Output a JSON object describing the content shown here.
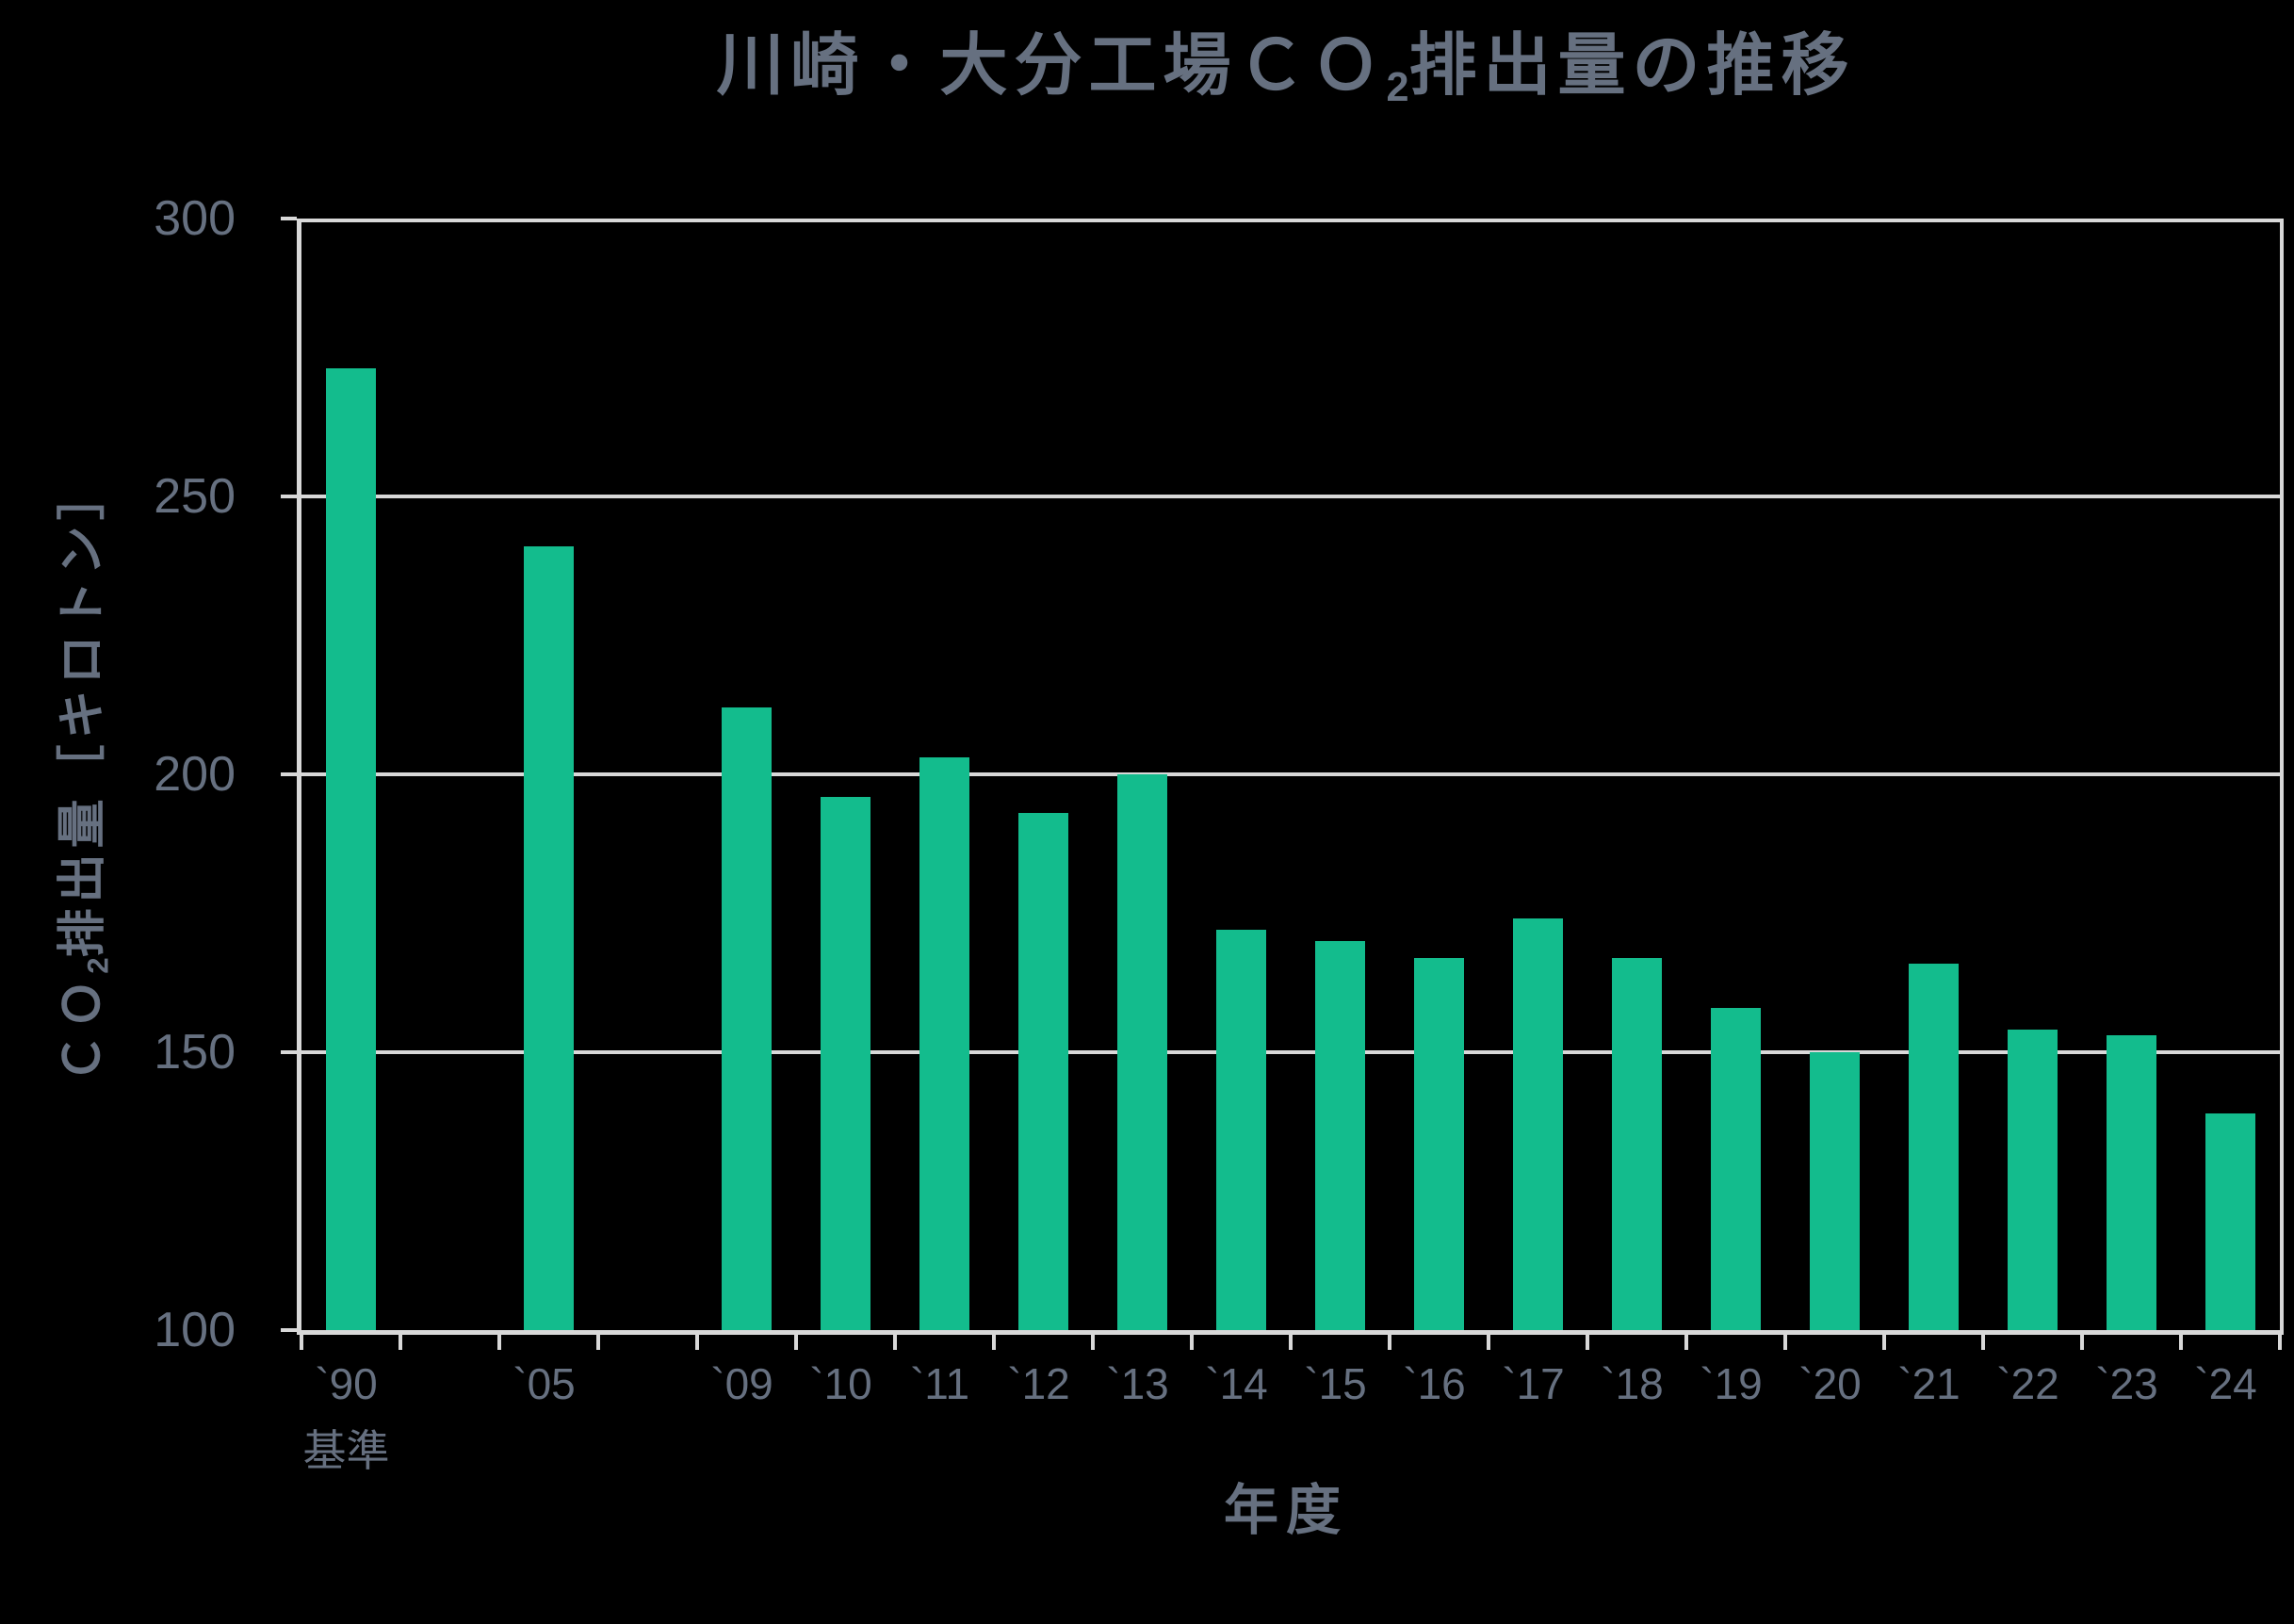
{
  "colors": {
    "background": "#000000",
    "bar": "#13BC8D",
    "axis": "#D8D8D8",
    "text": "#667080"
  },
  "chart_data": {
    "type": "bar",
    "title": "川崎・大分工場ＣＯ2排出量の推移",
    "title_parts": {
      "prefix": "川崎・大分工場ＣＯ",
      "sub": "2",
      "suffix": "排出量の推移"
    },
    "ylabel": "ＣＯ2排出量［キロトン］",
    "ylabel_parts": {
      "prefix": "ＣＯ",
      "sub": "2",
      "suffix": "排出量［キロトン］"
    },
    "xlabel": "年度",
    "baseline_note": "基準",
    "ylim": [
      100,
      300
    ],
    "yticks": [
      300,
      250,
      200,
      150,
      100
    ],
    "grid": true,
    "legend": false,
    "categories": [
      "`90",
      "`05",
      "`09",
      "`10",
      "`11",
      "`12",
      "`13",
      "`14",
      "`15",
      "`16",
      "`17",
      "`18",
      "`19",
      "`20",
      "`21",
      "`22",
      "`23",
      "`24"
    ],
    "slots": [
      0,
      2,
      4,
      5,
      6,
      7,
      8,
      9,
      10,
      11,
      12,
      13,
      14,
      15,
      16,
      17,
      18,
      19
    ],
    "total_slots": 20,
    "values": [
      273,
      241,
      212,
      196,
      203,
      193,
      200,
      172,
      170,
      167,
      174,
      167,
      158,
      150,
      166,
      154,
      153,
      139
    ]
  }
}
